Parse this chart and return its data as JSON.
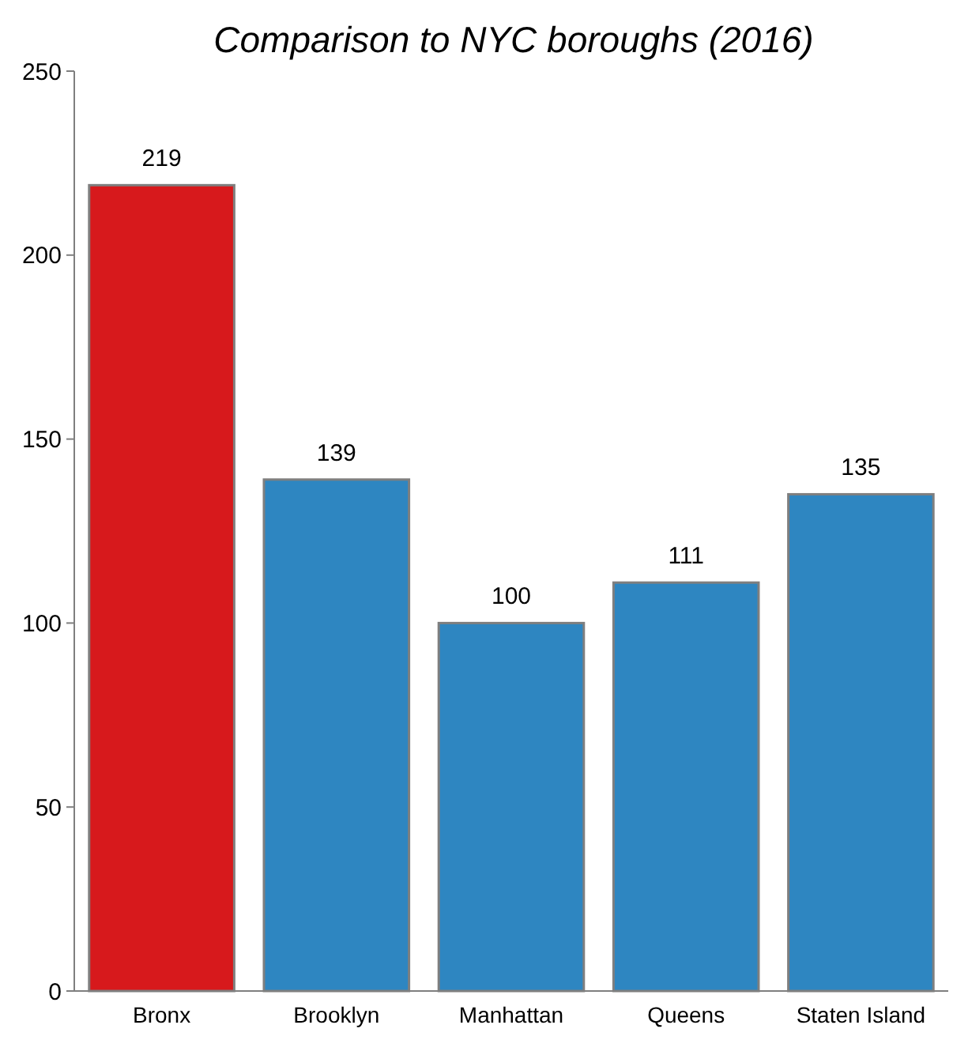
{
  "chart_data": {
    "type": "bar",
    "title": "Comparison to NYC boroughs (2016)",
    "categories": [
      "Bronx",
      "Brooklyn",
      "Manhattan",
      "Queens",
      "Staten Island"
    ],
    "values": [
      219,
      139,
      100,
      111,
      135
    ],
    "colors": [
      "#d7191c",
      "#2e86c1",
      "#2e86c1",
      "#2e86c1",
      "#2e86c1"
    ],
    "ylim": [
      0,
      250
    ],
    "yticks": [
      0,
      50,
      100,
      150,
      200,
      250
    ],
    "data_labels": true,
    "grid": false
  }
}
